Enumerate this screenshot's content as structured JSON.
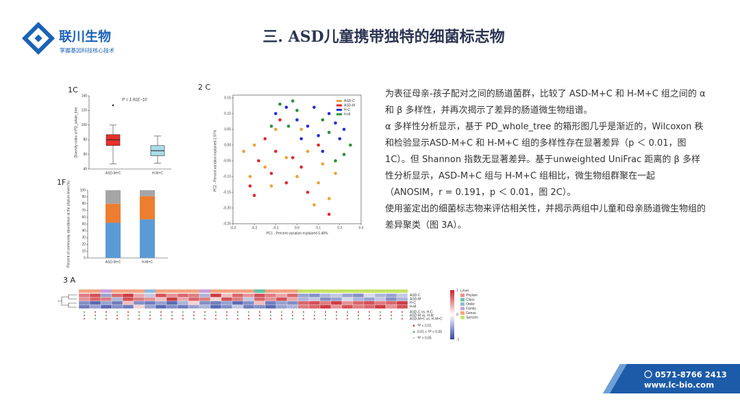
{
  "header": {
    "logo_name": "联川生物",
    "logo_slogan": "掌握基因科技核心技术",
    "title": "三. ASD儿童携带独特的细菌标志物"
  },
  "text": {
    "paragraphs": [
      "为表征母亲-孩子配对之间的肠道菌群，比较了 ASD-M+C 和 H-M+C 组之间的 α 和 β 多样性，并再次揭示了差异的肠道微生物组谱。",
      "α 多样性分析显示，基于 PD_whole_tree 的箱形图几乎是渐近的，Wilcoxon 秩和检验显示ASD-M+C 和 H-M+C 组的多样性存在显著差异（p ＜ 0.01，图 1C）。但 Shannon 指数无显著差异。基于unweighted UniFrac 距离的 β 多样性分析显示，ASD-M+C 组与 H-M+C 组相比，微生物组群聚在一起（ANOSIM，r = 0.191，p ＜ 0.01，图 2C）。",
      "使用鉴定出的细菌标志物来评估相关性，并揭示两组中儿童和母亲肠道微生物组的差异聚类（图 3A）。"
    ]
  },
  "chart_data": [
    {
      "type": "box",
      "panel": "1C",
      "annotation": "P = 1.91E−10",
      "ylabel": "Diversity index of PD_whole_tree",
      "categories": [
        "ASD-M+C",
        "H-M+C"
      ],
      "colors": [
        "#e8302a",
        "#a9dbe9"
      ],
      "boxes": [
        {
          "whislo": 47,
          "q1": 72,
          "med": 80,
          "q3": 87,
          "whishi": 100,
          "fliers": [
            127
          ]
        },
        {
          "whislo": 48,
          "q1": 58,
          "med": 65,
          "q3": 72,
          "whishi": 85,
          "fliers": []
        }
      ],
      "ylim": [
        40,
        140
      ],
      "yticks": [
        40,
        60,
        80,
        100,
        120,
        140
      ]
    },
    {
      "type": "stacked_bar",
      "panel": "1F",
      "ylabel": "Percent of community abundance at the phylum level (%)",
      "categories": [
        "ASD-M+C",
        "H-M+C"
      ],
      "series": [
        {
          "color": "#5b9bd5",
          "values": [
            52,
            57
          ]
        },
        {
          "color": "#ed7d31",
          "values": [
            28,
            34
          ]
        },
        {
          "color": "#a5a5a5",
          "values": [
            20,
            9
          ]
        }
      ],
      "ylim": [
        0,
        100
      ],
      "yticks": [
        0,
        10,
        20,
        30,
        40,
        50,
        60,
        70,
        80,
        90,
        100
      ]
    },
    {
      "type": "scatter",
      "panel": "2 C",
      "xlabel": "PC1 - Percent variation explained 5.48%",
      "ylabel": "PC2 - Percent variation explained 2.97%",
      "series": [
        {
          "name": "ASD-C",
          "color": "#f0a030",
          "x": [
            -0.25,
            -0.2,
            -0.15,
            -0.05,
            0.0,
            0.05,
            0.1,
            0.15,
            -0.1,
            0.12,
            -0.22,
            0.02,
            0.18,
            -0.12,
            0.08
          ],
          "values": [
            -0.02,
            0.0,
            -0.07,
            -0.04,
            -0.1,
            -0.02,
            -0.12,
            -0.17,
            0.05,
            -0.06,
            -0.1,
            0.05,
            -0.09,
            -0.13,
            -0.19
          ]
        },
        {
          "name": "ASD-M",
          "color": "#e02828",
          "x": [
            -0.2,
            -0.18,
            -0.1,
            -0.05,
            0.02,
            -0.15,
            0.05,
            -0.08,
            -0.22,
            0.1,
            -0.02,
            0.15,
            -0.12
          ],
          "values": [
            -0.16,
            -0.05,
            -0.02,
            -0.12,
            -0.07,
            0.02,
            -0.15,
            0.08,
            -0.13,
            0.0,
            -0.04,
            -0.22,
            -0.09
          ]
        },
        {
          "name": "H-C",
          "color": "#2230d0",
          "x": [
            -0.05,
            0.0,
            0.05,
            0.1,
            0.15,
            0.2,
            -0.1,
            0.12,
            0.18,
            0.08,
            0.02,
            0.22
          ],
          "values": [
            0.12,
            0.08,
            0.06,
            0.03,
            0.1,
            0.02,
            0.1,
            -0.02,
            0.07,
            0.12,
            0.02,
            0.05
          ]
        },
        {
          "name": "H-M",
          "color": "#2a9030",
          "x": [
            -0.08,
            -0.04,
            0.0,
            0.25,
            0.22,
            0.18,
            0.12,
            -0.12,
            0.15,
            -0.02
          ],
          "values": [
            0.13,
            0.06,
            0.11,
            0.0,
            -0.03,
            -0.05,
            0.08,
            0.06,
            0.04,
            0.14
          ]
        }
      ],
      "xlim": [
        -0.3,
        0.3
      ],
      "xticks": [
        -0.3,
        -0.2,
        -0.1,
        {
          "value": 0,
          "label": "0.0"
        },
        0.1,
        0.2,
        0.3
      ],
      "ylim": [
        -0.25,
        0.15
      ],
      "yticks": [
        0.15,
        {
          "value": 0.1,
          "label": "0.10"
        },
        0.05,
        {
          "value": 0,
          "label": "0.00"
        },
        -0.05,
        {
          "value": -0.1,
          "label": "-0.10"
        },
        -0.15,
        {
          "value": -0.2,
          "label": "-0.20"
        },
        -0.25
      ]
    },
    {
      "type": "heatmap",
      "panel": "3 A",
      "rows": [
        "ASD-C",
        "ASD-M",
        "H-C",
        "H-M"
      ],
      "values": [
        [
          0.6,
          0.8,
          -0.5,
          0.7,
          0.9,
          0.4,
          -0.3,
          0.8,
          0.5,
          0.7,
          0.6,
          -0.4,
          0.9,
          0.3,
          0.7,
          0.5,
          0.8,
          0.6,
          0.4,
          0.7,
          -0.5,
          -0.6,
          -0.4,
          -0.3,
          -0.5,
          -0.6,
          -0.2,
          -0.4,
          -0.5,
          -0.3
        ],
        [
          0.5,
          0.7,
          0.6,
          -0.4,
          0.8,
          0.6,
          0.5,
          0.3,
          0.9,
          0.4,
          0.7,
          0.6,
          0.2,
          0.8,
          0.6,
          -0.3,
          0.7,
          0.5,
          0.8,
          0.4,
          -0.4,
          -0.3,
          -0.6,
          -0.5,
          -0.2,
          -0.4,
          -0.5,
          -0.3,
          -0.6,
          -0.4
        ],
        [
          -0.6,
          -0.8,
          -0.5,
          -0.7,
          0.3,
          -0.6,
          -0.7,
          -0.5,
          -0.8,
          -0.4,
          0.2,
          -0.6,
          -0.7,
          -0.5,
          -0.8,
          -0.6,
          0.3,
          -0.7,
          -0.5,
          -0.6,
          0.7,
          0.8,
          0.6,
          0.9,
          0.5,
          0.7,
          0.8,
          0.6,
          0.7,
          0.9
        ],
        [
          -0.7,
          -0.5,
          -0.8,
          -0.6,
          -0.7,
          0.2,
          -0.5,
          -0.8,
          -0.6,
          -0.7,
          -0.5,
          -0.4,
          -0.8,
          -0.6,
          -0.3,
          -0.7,
          -0.6,
          -0.8,
          -0.5,
          -0.4,
          0.6,
          0.7,
          0.9,
          0.5,
          0.8,
          0.6,
          0.7,
          0.9,
          0.5,
          0.8
        ]
      ],
      "column_levels": [
        4,
        4,
        3,
        4,
        4,
        4,
        2,
        4,
        4,
        4,
        4,
        3,
        4,
        4,
        4,
        4,
        1,
        4,
        4,
        4,
        5,
        5,
        5,
        5,
        5,
        5,
        5,
        5,
        5,
        5
      ],
      "comparisons": [
        "ASD-C vs. H-C",
        "ASD-M vs. H-M",
        "ASD-M+C vs. H-M+C"
      ],
      "legend_title": "Level",
      "levels": [
        {
          "name": "Phylum",
          "color": "#f08c8c"
        },
        {
          "name": "Class",
          "color": "#66c2a5"
        },
        {
          "name": "Order",
          "color": "#8fbcdc"
        },
        {
          "name": "Family",
          "color": "#c9a0dc"
        },
        {
          "name": "Genus",
          "color": "#f4a582"
        },
        {
          "name": "Species",
          "color": "#c7e36a"
        }
      ],
      "significance": [
        {
          "label": "*P < 0.01",
          "color": "#e03030"
        },
        {
          "label": "0.01 < *P < 0.05",
          "color": "#40b040"
        },
        {
          "label": "*P > 0.05",
          "color": "#cccccc"
        }
      ],
      "colorbar_ticks": [
        1,
        0,
        -1
      ]
    }
  ],
  "footer": {
    "phone": "0571-8766 2413",
    "website": "www.lc-bio.com"
  }
}
